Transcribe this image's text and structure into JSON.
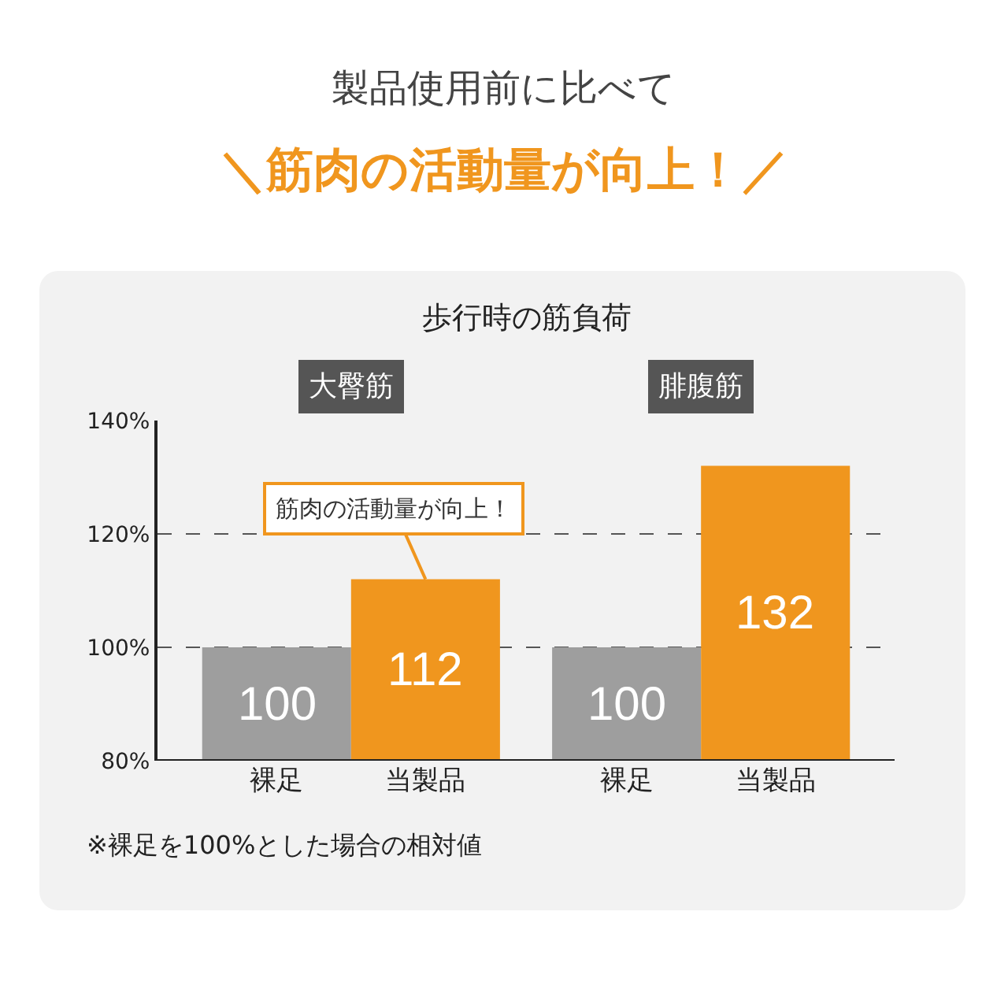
{
  "chart_data": {
    "type": "bar",
    "title": "製品使用前に比べて",
    "subtitle": "＼筋肉の活動量が向上！／",
    "categories": [
      "裸足",
      "当製品",
      "裸足",
      "当製品"
    ],
    "values": [
      100,
      112,
      100,
      132
    ],
    "colors": [
      "#9e9e9e",
      "#f0961e",
      "#9e9e9e",
      "#f0961e"
    ],
    "ylim": [
      80,
      140
    ],
    "yticks": [
      {
        "value": 80,
        "label": "80%"
      },
      {
        "value": 100,
        "label": "100%"
      },
      {
        "value": 120,
        "label": "120%"
      },
      {
        "value": 140,
        "label": "140%"
      }
    ],
    "grid": "y",
    "data_labels": true,
    "annotations": [
      "歩行時の筋負荷",
      "大臀筋",
      "腓腹筋",
      {
        "text": "筋肉の活動量が向上！",
        "x": "当製品",
        "y": 112
      },
      "※裸足を100%とした場合の相対値"
    ]
  }
}
